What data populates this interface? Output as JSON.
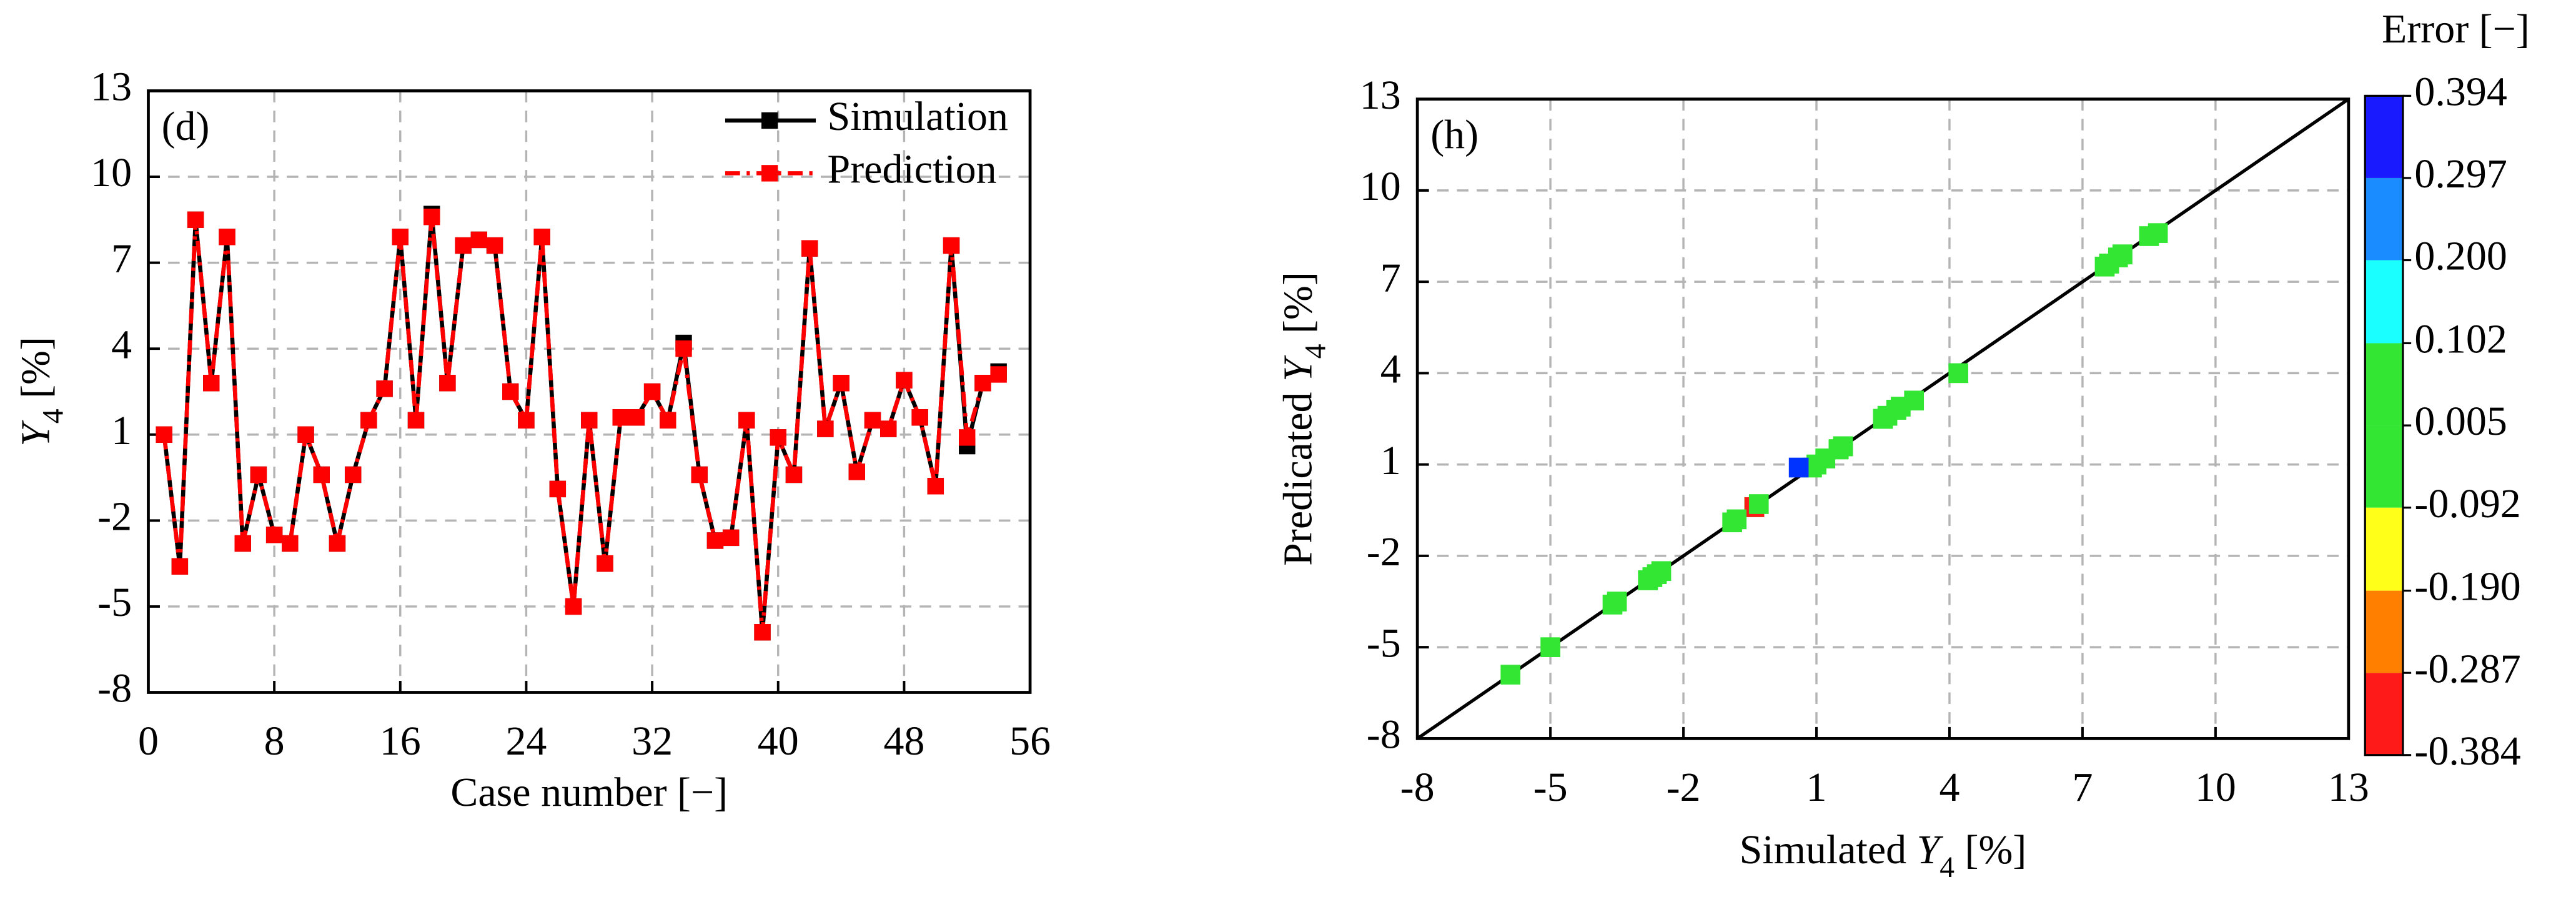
{
  "chart_data": [
    {
      "type": "line",
      "annotation": "(d)",
      "x_label": "Case number [−]",
      "y_label_parts": [
        "Y",
        "4",
        " [%]"
      ],
      "x": [
        1,
        2,
        3,
        4,
        5,
        6,
        7,
        8,
        9,
        10,
        11,
        12,
        13,
        14,
        15,
        16,
        17,
        18,
        19,
        20,
        21,
        22,
        23,
        24,
        25,
        26,
        27,
        28,
        29,
        30,
        31,
        32,
        33,
        34,
        35,
        36,
        37,
        38,
        39,
        40,
        41,
        42,
        43,
        44,
        45,
        46,
        47,
        48,
        49,
        50,
        51,
        52,
        53,
        54
      ],
      "series": [
        {
          "name": "Simulation",
          "color": "#000000",
          "dash": "solid",
          "values": [
            1.0,
            -3.6,
            8.5,
            2.8,
            7.9,
            -2.8,
            -0.4,
            -2.5,
            -2.8,
            1.0,
            -0.4,
            -2.8,
            -0.4,
            1.5,
            2.6,
            7.9,
            1.5,
            8.7,
            2.8,
            7.6,
            7.8,
            7.6,
            2.5,
            1.5,
            7.9,
            -0.9,
            -5.0,
            1.5,
            -3.5,
            1.6,
            1.6,
            2.5,
            1.5,
            4.2,
            -0.4,
            -2.7,
            -2.6,
            1.5,
            -5.9,
            0.9,
            -0.4,
            7.5,
            1.2,
            2.8,
            -0.3,
            1.5,
            1.2,
            2.9,
            1.6,
            -0.8,
            7.6,
            0.6,
            2.8,
            3.2
          ]
        },
        {
          "name": "Prediction",
          "color": "#ff0000",
          "dash": "dashdot",
          "values": [
            1.0,
            -3.6,
            8.5,
            2.8,
            7.9,
            -2.8,
            -0.4,
            -2.5,
            -2.8,
            1.0,
            -0.4,
            -2.8,
            -0.4,
            1.5,
            2.6,
            7.9,
            1.5,
            8.6,
            2.8,
            7.6,
            7.8,
            7.6,
            2.5,
            1.5,
            7.9,
            -0.9,
            -5.0,
            1.5,
            -3.5,
            1.6,
            1.6,
            2.5,
            1.5,
            4.0,
            -0.4,
            -2.7,
            -2.6,
            1.5,
            -5.9,
            0.9,
            -0.4,
            7.5,
            1.2,
            2.8,
            -0.3,
            1.5,
            1.2,
            2.9,
            1.6,
            -0.8,
            7.6,
            0.9,
            2.8,
            3.1
          ]
        }
      ],
      "xlim": [
        0,
        56
      ],
      "xticks": [
        0,
        8,
        16,
        24,
        32,
        40,
        48,
        56
      ],
      "ylim": [
        -8,
        13
      ],
      "yticks": [
        -8,
        -5,
        -2,
        1,
        4,
        7,
        10,
        13
      ],
      "grid": true,
      "legend": "top-right"
    },
    {
      "type": "scatter",
      "annotation": "(h)",
      "x_label_parts": [
        "Simulated ",
        "Y",
        "4",
        " [%]"
      ],
      "y_label_parts": [
        "Predicated ",
        "Y",
        "4",
        " [%]"
      ],
      "x": [
        1.0,
        -3.6,
        8.5,
        2.8,
        7.9,
        -2.8,
        -0.4,
        -2.5,
        -2.8,
        1.0,
        -0.4,
        -2.8,
        -0.4,
        1.5,
        2.6,
        7.9,
        1.5,
        8.7,
        2.8,
        7.6,
        7.8,
        7.6,
        2.5,
        1.5,
        7.9,
        -0.9,
        -5.0,
        1.5,
        -3.5,
        1.6,
        1.6,
        2.5,
        1.5,
        4.2,
        -0.4,
        -2.7,
        -2.6,
        1.5,
        -5.9,
        0.9,
        -0.4,
        7.5,
        1.2,
        2.8,
        -0.3,
        1.5,
        1.2,
        2.9,
        1.6,
        -0.8,
        7.6,
        0.6,
        2.8,
        3.2
      ],
      "values": [
        1.0,
        -3.6,
        8.5,
        2.8,
        7.9,
        -2.8,
        -0.4,
        -2.5,
        -2.8,
        1.0,
        -0.4,
        -2.8,
        -0.4,
        1.5,
        2.6,
        7.9,
        1.5,
        8.6,
        2.8,
        7.6,
        7.8,
        7.6,
        2.5,
        1.5,
        7.9,
        -0.9,
        -5.0,
        1.5,
        -3.5,
        1.6,
        1.6,
        2.5,
        1.5,
        4.0,
        -0.4,
        -2.7,
        -2.6,
        1.5,
        -5.9,
        0.9,
        -0.4,
        7.5,
        1.2,
        2.8,
        -0.3,
        1.5,
        1.2,
        2.9,
        1.6,
        -0.8,
        7.6,
        0.9,
        2.8,
        3.1
      ],
      "point_color": "#33e633",
      "highlight": [
        {
          "index": 51,
          "color": "#0033ff"
        },
        {
          "index": 40,
          "color": "#ff1a1a"
        }
      ],
      "xlim": [
        -8,
        13
      ],
      "xticks": [
        -8,
        -5,
        -2,
        1,
        4,
        7,
        10,
        13
      ],
      "ylim": [
        -8,
        13
      ],
      "yticks": [
        -8,
        -5,
        -2,
        1,
        4,
        7,
        10,
        13
      ],
      "grid": true,
      "colorbar": {
        "title": "Error [−]",
        "levels": [
          -0.384,
          -0.287,
          {
            "value": -0.19,
            "label": "-0.190"
          },
          -0.092,
          0.005,
          0.102,
          {
            "value": 0.2,
            "label": "0.200"
          },
          0.297,
          0.394
        ],
        "colors": [
          "#ff1a1a",
          "#ff8000",
          "#ffff1a",
          "#33e633",
          "#33e633",
          "#1affff",
          "#1a8cff",
          "#1a1aff"
        ]
      }
    }
  ]
}
